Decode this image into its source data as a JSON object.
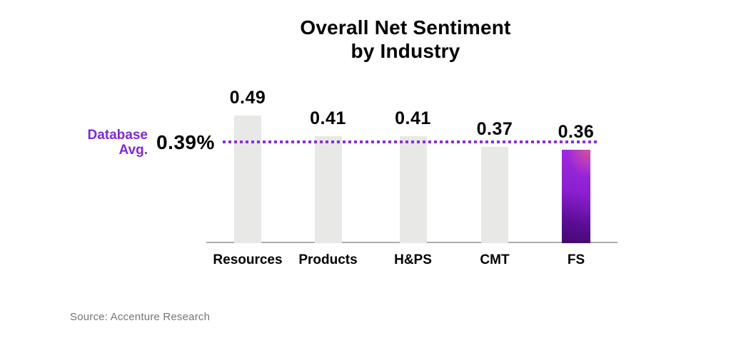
{
  "chart_data": {
    "type": "bar",
    "title": "Overall Net Sentiment by Industry",
    "title_lines": [
      "Overall Net Sentiment",
      "by Industry"
    ],
    "categories": [
      "Resources",
      "Products",
      "H&PS",
      "CMT",
      "FS"
    ],
    "values": [
      0.49,
      0.41,
      0.41,
      0.37,
      0.36
    ],
    "value_labels": [
      "0.49",
      "0.41",
      "0.41",
      "0.37",
      "0.36"
    ],
    "xlabel": "",
    "ylabel": "",
    "ylim": [
      0,
      0.55
    ],
    "grid": false,
    "legend": "none",
    "average_line": {
      "label_lines": [
        "Database",
        "Avg."
      ],
      "value": 0.39,
      "value_label": "0.39%",
      "line_color": "#8C2BE8",
      "text_color": "#7E28DB"
    },
    "highlight": {
      "category": "FS",
      "gradient_pink": "#D6509E",
      "gradient_top": "#A22BE0",
      "gradient_mid": "#8B1FD2",
      "gradient_low": "#5A0C92",
      "gradient_bottom": "#430A6F"
    },
    "bar_color": "#E8E8E7",
    "axis_line_color": "#ADADAD",
    "text_color": "#000000",
    "source": "Source: Accenture Research",
    "source_color": "#757575"
  }
}
